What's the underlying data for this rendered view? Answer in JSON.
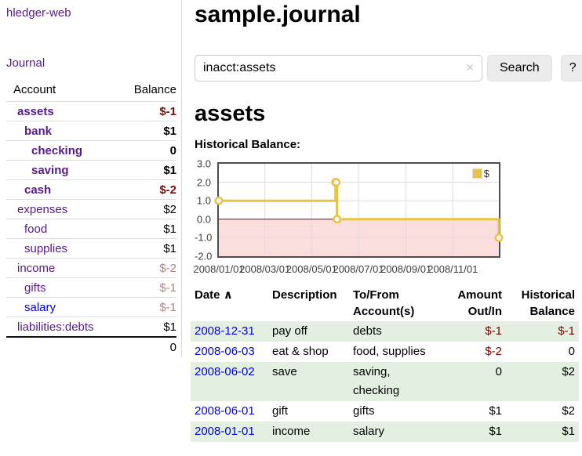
{
  "app": {
    "brand": "hledger-web"
  },
  "sidebar": {
    "journal_link": "Journal",
    "accounts_table": {
      "account_header": "Account",
      "balance_header": "Balance",
      "rows": [
        {
          "name": "assets",
          "balance": "$-1",
          "depth": 1,
          "bold": true,
          "balance_style": "neg-strong",
          "link_style": "purple"
        },
        {
          "name": "bank",
          "balance": "$1",
          "depth": 2,
          "bold": true,
          "balance_style": "",
          "link_style": "purple"
        },
        {
          "name": "checking",
          "balance": "0",
          "depth": 3,
          "bold": true,
          "balance_style": "",
          "link_style": "purple"
        },
        {
          "name": "saving",
          "balance": "$1",
          "depth": 3,
          "bold": true,
          "balance_style": "",
          "link_style": "purple"
        },
        {
          "name": "cash",
          "balance": "$-2",
          "depth": 2,
          "bold": true,
          "balance_style": "neg-strong",
          "link_style": "purple"
        },
        {
          "name": "expenses",
          "balance": "$2",
          "depth": 1,
          "bold": false,
          "balance_style": "",
          "link_style": "purple"
        },
        {
          "name": "food",
          "balance": "$1",
          "depth": 2,
          "bold": false,
          "balance_style": "",
          "link_style": "purple"
        },
        {
          "name": "supplies",
          "balance": "$1",
          "depth": 2,
          "bold": false,
          "balance_style": "",
          "link_style": "purple"
        },
        {
          "name": "income",
          "balance": "$-2",
          "depth": 1,
          "bold": false,
          "balance_style": "neg-muted",
          "link_style": "purple"
        },
        {
          "name": "gifts",
          "balance": "$-1",
          "depth": 2,
          "bold": false,
          "balance_style": "neg-muted",
          "link_style": "purple"
        },
        {
          "name": "salary",
          "balance": "$-1",
          "depth": 2,
          "bold": false,
          "balance_style": "neg-muted",
          "link_style": "blue"
        },
        {
          "name": "liabilities:debts",
          "balance": "$1",
          "depth": 1,
          "bold": false,
          "balance_style": "",
          "link_style": "purple"
        }
      ],
      "total": "0"
    }
  },
  "main": {
    "title": "sample.journal",
    "search": {
      "value": "inacct:assets",
      "clear_icon": "✕",
      "search_button": "Search",
      "help_button": "?"
    },
    "account_heading": "assets",
    "register": {
      "headers": [
        "Date",
        "Description",
        "To/From Account(s)",
        "Amount Out/In",
        "Historical Balance"
      ],
      "sort_icon": "∧",
      "rows": [
        {
          "date": "2008-12-31",
          "description": "pay off",
          "accounts": "debts",
          "amount": "$-1",
          "balance": "$-1",
          "amount_negative": true,
          "balance_negative": true
        },
        {
          "date": "2008-06-03",
          "description": "eat & shop",
          "accounts": "food, supplies",
          "amount": "$-2",
          "balance": "0",
          "amount_negative": true,
          "balance_negative": false
        },
        {
          "date": "2008-06-02",
          "description": "save",
          "accounts": "saving, checking",
          "amount": "0",
          "balance": "$2",
          "amount_negative": false,
          "balance_negative": false
        },
        {
          "date": "2008-06-01",
          "description": "gift",
          "accounts": "gifts",
          "amount": "$1",
          "balance": "$2",
          "amount_negative": false,
          "balance_negative": false
        },
        {
          "date": "2008-01-01",
          "description": "income",
          "accounts": "salary",
          "amount": "$1",
          "balance": "$1",
          "amount_negative": false,
          "balance_negative": false
        }
      ]
    }
  },
  "chart_data": {
    "type": "line",
    "step": true,
    "title": "Historical Balance:",
    "series": [
      {
        "name": "$",
        "color": "#e9c348",
        "points": [
          [
            "2008-01-01",
            1
          ],
          [
            "2008-06-01",
            2
          ],
          [
            "2008-06-02",
            2
          ],
          [
            "2008-06-03",
            0
          ],
          [
            "2008-12-31",
            -1
          ]
        ]
      }
    ],
    "x_range": [
      "2008-01-01",
      "2008-12-31"
    ],
    "y_range": [
      -2,
      3
    ],
    "y_ticks": [
      {
        "value": 3,
        "label": "3.0"
      },
      {
        "value": 2,
        "label": "2.0"
      },
      {
        "value": 1,
        "label": "1.0"
      },
      {
        "value": 0,
        "label": "0.0"
      },
      {
        "value": -1,
        "label": "-1.0"
      },
      {
        "value": -2,
        "label": "-2.0"
      }
    ],
    "x_ticks": [
      {
        "date": "2008-01-01",
        "label": "2008/01/01"
      },
      {
        "date": "2008-03-01",
        "label": "2008/03/01"
      },
      {
        "date": "2008-05-01",
        "label": "2008/05/01"
      },
      {
        "date": "2008-07-01",
        "label": "2008/07/01"
      },
      {
        "date": "2008-09-01",
        "label": "2008/09/01"
      },
      {
        "date": "2008-11-01",
        "label": "2008/11/01"
      }
    ],
    "legend": {
      "label": "$",
      "position": "top-right"
    },
    "grid": true,
    "grid_color": "#dcdcdc",
    "zero_line_color": "#9a0000",
    "negative_region_color": "#fadede"
  },
  "colors": {
    "link_purple": "#551a8b",
    "link_blue": "#0000ee",
    "negative_strong": "#7c0a0a",
    "negative_muted": "#b97f7f",
    "negative": "#800000",
    "row_green": "#e3efe1",
    "series_yellow": "#e9c348"
  }
}
